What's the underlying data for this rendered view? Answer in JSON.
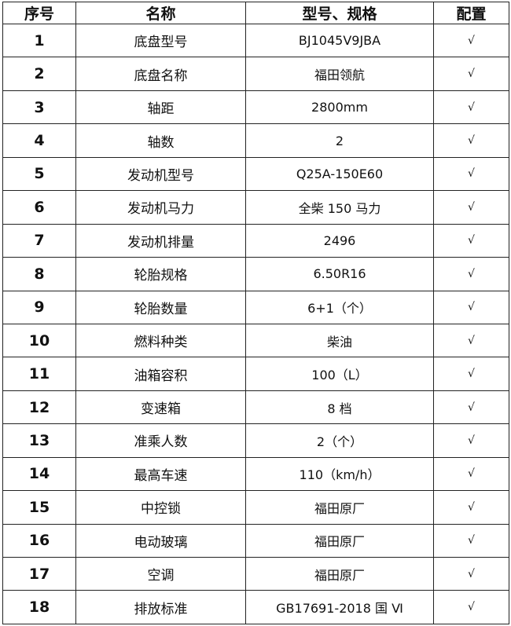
{
  "headers": {
    "index": "序号",
    "name": "名称",
    "spec": "型号、规格",
    "config": "配置"
  },
  "rows": [
    {
      "index": "1",
      "name": "底盘型号",
      "spec": "BJ1045V9JBA",
      "config": "√"
    },
    {
      "index": "2",
      "name": "底盘名称",
      "spec": "福田领航",
      "config": "√"
    },
    {
      "index": "3",
      "name": "轴距",
      "spec": "2800mm",
      "config": "√"
    },
    {
      "index": "4",
      "name": "轴数",
      "spec": "2",
      "config": "√"
    },
    {
      "index": "5",
      "name": "发动机型号",
      "spec": "Q25A-150E60",
      "config": "√"
    },
    {
      "index": "6",
      "name": "发动机马力",
      "spec": "全柴 150 马力",
      "config": "√"
    },
    {
      "index": "7",
      "name": "发动机排量",
      "spec": "2496",
      "config": "√"
    },
    {
      "index": "8",
      "name": "轮胎规格",
      "spec": "6.50R16",
      "config": "√"
    },
    {
      "index": "9",
      "name": "轮胎数量",
      "spec": "6+1（个）",
      "config": "√"
    },
    {
      "index": "10",
      "name": "燃料种类",
      "spec": "柴油",
      "config": "√"
    },
    {
      "index": "11",
      "name": "油箱容积",
      "spec": "100（L）",
      "config": "√"
    },
    {
      "index": "12",
      "name": "变速箱",
      "spec": "8 档",
      "config": "√"
    },
    {
      "index": "13",
      "name": "准乘人数",
      "spec": "2（个）",
      "config": "√"
    },
    {
      "index": "14",
      "name": "最高车速",
      "spec": "110（km/h）",
      "config": "√"
    },
    {
      "index": "15",
      "name": "中控锁",
      "spec": "福田原厂",
      "config": "√"
    },
    {
      "index": "16",
      "name": "电动玻璃",
      "spec": "福田原厂",
      "config": "√"
    },
    {
      "index": "17",
      "name": "空调",
      "spec": "福田原厂",
      "config": "√"
    },
    {
      "index": "18",
      "name": "排放标准",
      "spec": "GB17691-2018 国 Ⅵ",
      "config": "√"
    }
  ]
}
